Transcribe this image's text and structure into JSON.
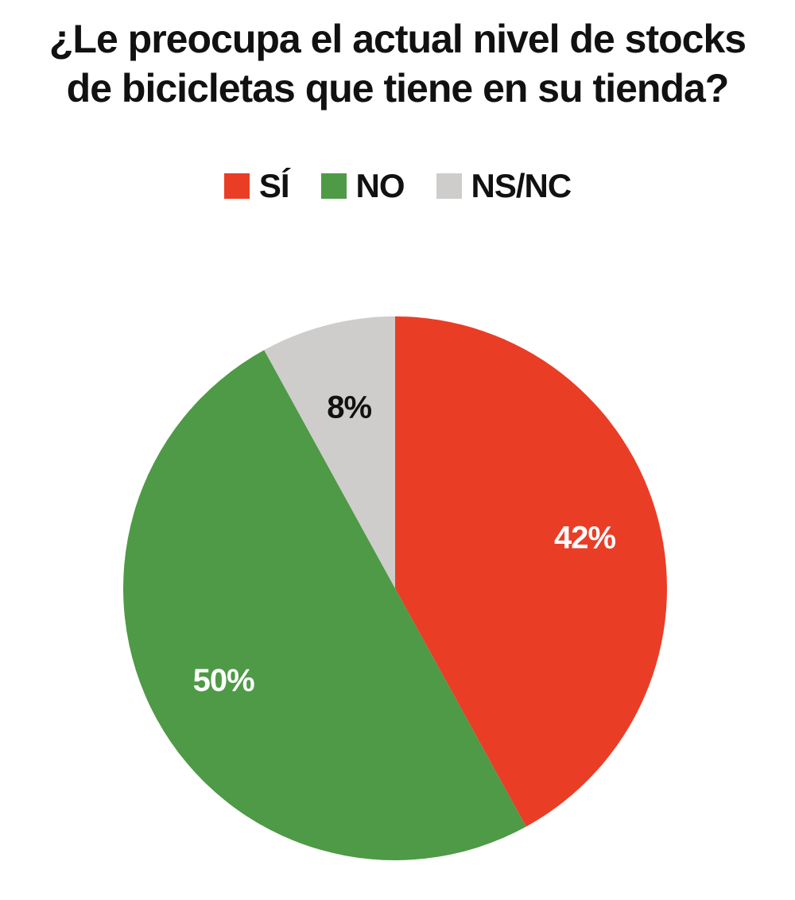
{
  "chart_data": {
    "type": "pie",
    "title_lines": [
      "¿Le preocupa el actual nivel de stocks",
      "de bicicletas que tiene en su tienda?"
    ],
    "categories": [
      "SÍ",
      "NO",
      "NS/NC"
    ],
    "values": [
      42,
      50,
      8
    ],
    "data_labels": [
      "42%",
      "50%",
      "8%"
    ],
    "colors": [
      "#EA3D26",
      "#4E9A46",
      "#CFCDCB"
    ],
    "label_colors": [
      "#ffffff",
      "#ffffff",
      "#111111"
    ],
    "legend_position": "top",
    "start_angle": "12 o'clock",
    "direction": "clockwise"
  }
}
